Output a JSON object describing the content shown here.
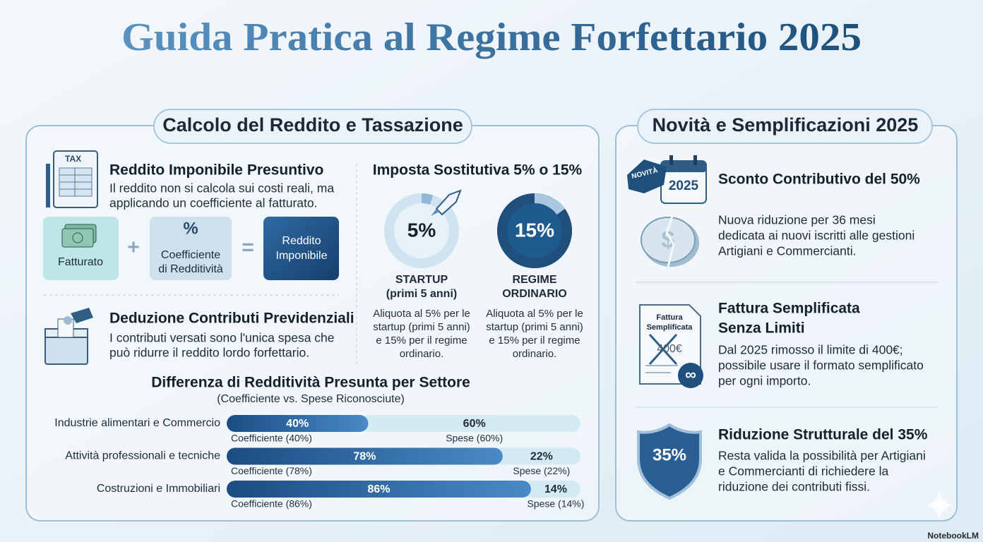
{
  "title": "Guida Pratica al Regime Forfettario 2025",
  "left_panel": {
    "header": "Calcolo del Reddito e Tassazione",
    "reddito": {
      "icon_label": "TAX",
      "heading": "Reddito Imponibile Presuntivo",
      "lines": [
        "Il reddito non si calcola sui costi reali, ma",
        "applicando un coefficiente al fatturato."
      ]
    },
    "formula": {
      "first": [
        "Fatturato"
      ],
      "plus": "+",
      "second": [
        "Coefficiente",
        "di Redditività"
      ],
      "equals": "=",
      "result": [
        "Reddito",
        "Imponibile"
      ]
    },
    "deduzione": {
      "heading": "Deduzione Contributi Previdenziali",
      "lines": [
        "I contributi versati sono l'unica spesa che",
        "può ridurre il reddito lordo forfettario."
      ]
    },
    "imposta": {
      "heading": "Imposta Sostitutiva 5% o 15%",
      "rates": [
        {
          "value": 5,
          "label": "5%",
          "name_lines": [
            "STARTUP",
            "(primi 5 anni)"
          ],
          "desc_lines": [
            "Aliquota al 5% per le",
            "startup (primi 5 anni)",
            "e 15% per il regime",
            "ordinario."
          ]
        },
        {
          "value": 15,
          "label": "15%",
          "name_lines": [
            "REGIME",
            "ORDINARIO"
          ],
          "desc_lines": [
            "Aliquota al 5% per le",
            "startup (primi 5 anni)",
            "e 15% per il regime",
            "ordinario."
          ]
        }
      ]
    },
    "sector_chart": {
      "title": "Differenza di Redditività Presunta per Settore",
      "subtitle": "(Coefficiente vs. Spese Riconosciute)",
      "categories": [
        "Industrie alimentari e Commercio",
        "Attività professionali e tecniche",
        "Costruzioni e Immobiliari"
      ],
      "series": [
        {
          "color": "#2a66a3",
          "values": [
            40,
            78,
            86
          ],
          "value_labels": [
            "40%",
            "78%",
            "86%"
          ],
          "captions": [
            "Coefficiente (40%)",
            "Coefficiente (78%)",
            "Coefficiente (86%)"
          ]
        },
        {
          "color": "#d3eaf2",
          "values": [
            60,
            22,
            14
          ],
          "value_labels": [
            "60%",
            "22%",
            "14%"
          ],
          "captions": [
            "Spese (60%)",
            "Spese (22%)",
            "Spese (14%)"
          ]
        }
      ]
    }
  },
  "right_panel": {
    "header": "Novità e Semplificazioni 2025",
    "items": [
      {
        "icon_texts": [
          "NOVITÀ",
          "2025"
        ],
        "heading": [
          "Sconto Contributivo del 50%"
        ],
        "lines": [
          "Nuova riduzione per 36 mesi",
          "dedicata ai nuovi iscritti alle gestioni",
          "Artigiani e Commercianti."
        ]
      },
      {
        "icon_texts": [
          "Fattura",
          "Semplificata",
          "400€"
        ],
        "heading": [
          "Fattura Semplificata",
          "Senza Limiti"
        ],
        "lines": [
          "Dal 2025 rimosso il limite di 400€;",
          "possibile usare il formato semplificato",
          "per ogni importo."
        ]
      },
      {
        "icon_texts": [
          "35%"
        ],
        "heading": [
          "Riduzione Strutturale del 35%"
        ],
        "lines": [
          "Resta valida la possibilità per Artigiani",
          "e Commercianti di richiedere la",
          "riduzione dei contributi fissi."
        ]
      }
    ]
  },
  "footer": "NotebookLM"
}
